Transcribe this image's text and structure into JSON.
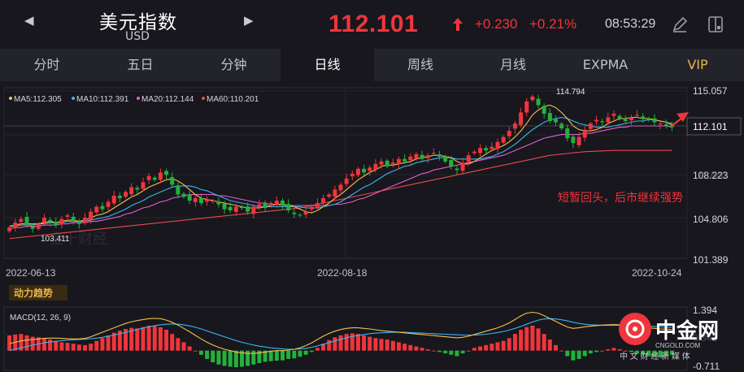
{
  "header": {
    "title": "美元指数",
    "subtitle": "USD",
    "price": "112.101",
    "change": "+0.230",
    "change_pct": "+0.21%",
    "time": "08:53:29",
    "prev_icon": "chevron-left-icon",
    "next_icon": "chevron-right-icon",
    "price_arrow_icon": "arrow-up-icon",
    "draw_icon": "pen-icon",
    "layout_icon": "split-panel-icon"
  },
  "tabs": [
    {
      "label": "分时",
      "active": false
    },
    {
      "label": "五日",
      "active": false
    },
    {
      "label": "分钟",
      "active": false
    },
    {
      "label": "日线",
      "active": true
    },
    {
      "label": "周线",
      "active": false
    },
    {
      "label": "月线",
      "active": false
    },
    {
      "label": "EXPMA",
      "active": false
    },
    {
      "label": "VIP",
      "active": false
    }
  ],
  "ma_legend": [
    {
      "label": "MA5:112.305",
      "color": "#f5c04a"
    },
    {
      "label": "MA10:112.391",
      "color": "#3ab4f2"
    },
    {
      "label": "MA20:112.144",
      "color": "#e95cd2"
    },
    {
      "label": "MA60:110.201",
      "color": "#e84a4a"
    }
  ],
  "annotation": "短暂回头，后市继续强势",
  "watermark": "金十财经",
  "indicator_label": "动力趋势",
  "macd_label": "MACD(12, 26, 9)",
  "colors": {
    "up": "#f0353c",
    "down": "#25b03c",
    "accent": "#f0353c",
    "vip": "#e8b64c"
  },
  "logo": {
    "name": "中金网",
    "url": "CNGOLD.COM",
    "tagline": "中 文 财 经 新 媒 体"
  },
  "chart_data": [
    {
      "type": "candlestick",
      "y_ticks": [
        "115.057",
        "112.101",
        "108.223",
        "104.806",
        "101.389"
      ],
      "current_price_tag": "112.101",
      "hidden_tick": "111.640",
      "ylim": [
        101.389,
        115.057
      ],
      "x_ticks": [
        "2022-06-13",
        "2022-08-18",
        "2022-10-24"
      ],
      "max_label": "114.794",
      "min_label": "103.411",
      "close": [
        103.9,
        104.3,
        104.6,
        104.1,
        103.8,
        104.2,
        104.7,
        104.4,
        104.1,
        104.6,
        104.9,
        104.4,
        104.2,
        104.7,
        105.2,
        105.6,
        105.4,
        106.0,
        106.5,
        106.3,
        106.8,
        107.2,
        107.0,
        107.6,
        108.1,
        107.8,
        108.4,
        108.2,
        107.4,
        106.6,
        106.4,
        106.1,
        106.3,
        105.9,
        106.2,
        106.1,
        105.8,
        105.4,
        105.3,
        105.6,
        105.5,
        105.2,
        105.6,
        105.8,
        105.5,
        105.9,
        106.1,
        105.7,
        105.3,
        105.0,
        104.9,
        105.2,
        105.6,
        105.9,
        106.3,
        106.6,
        107.0,
        107.4,
        107.9,
        108.3,
        108.7,
        108.4,
        108.8,
        109.1,
        109.3,
        108.9,
        109.2,
        109.5,
        109.3,
        109.7,
        109.9,
        109.5,
        109.8,
        110.0,
        109.7,
        109.3,
        108.9,
        108.6,
        109.2,
        109.8,
        110.1,
        110.4,
        110.2,
        110.5,
        110.9,
        111.3,
        111.8,
        112.4,
        113.3,
        114.2,
        114.6,
        113.9,
        113.2,
        112.6,
        112.5,
        112.0,
        111.2,
        110.8,
        111.3,
        111.9,
        112.4,
        112.7,
        112.5,
        112.9,
        113.2,
        112.8,
        112.6,
        112.9,
        113.1,
        112.8,
        112.7,
        112.5,
        112.4,
        112.2,
        112.1
      ],
      "ma5": [
        104.0,
        104.1,
        104.2,
        104.2,
        104.2,
        104.2,
        104.3,
        104.4,
        104.3,
        104.4,
        104.5,
        104.5,
        104.4,
        104.5,
        104.7,
        104.9,
        105.0,
        105.2,
        105.5,
        105.8,
        106.1,
        106.4,
        106.6,
        106.9,
        107.2,
        107.4,
        107.6,
        107.8,
        107.9,
        107.7,
        107.4,
        107.0,
        106.6,
        106.3,
        106.2,
        106.1,
        106.0,
        105.9,
        105.8,
        105.7,
        105.6,
        105.5,
        105.5,
        105.5,
        105.6,
        105.7,
        105.8,
        105.8,
        105.7,
        105.6,
        105.4,
        105.2,
        105.1,
        105.3,
        105.6,
        105.9,
        106.3,
        106.6,
        107.0,
        107.4,
        107.8,
        108.1,
        108.4,
        108.6,
        108.9,
        109.0,
        109.0,
        109.1,
        109.2,
        109.3,
        109.5,
        109.6,
        109.7,
        109.8,
        109.8,
        109.7,
        109.6,
        109.3,
        109.1,
        109.1,
        109.3,
        109.6,
        109.9,
        110.2,
        110.4,
        110.6,
        110.9,
        111.3,
        111.8,
        112.4,
        113.1,
        113.5,
        113.8,
        113.9,
        113.7,
        113.3,
        112.8,
        112.2,
        111.9,
        111.8,
        111.8,
        111.9,
        112.1,
        112.4,
        112.6,
        112.8,
        112.8,
        112.9,
        112.9,
        112.8,
        112.8,
        112.7,
        112.6,
        112.5,
        112.3
      ],
      "ma10": [
        104.0,
        104.0,
        104.1,
        104.1,
        104.1,
        104.2,
        104.2,
        104.3,
        104.3,
        104.3,
        104.4,
        104.4,
        104.4,
        104.4,
        104.5,
        104.6,
        104.7,
        104.8,
        105.0,
        105.2,
        105.4,
        105.7,
        105.9,
        106.1,
        106.4,
        106.6,
        106.8,
        107.0,
        107.2,
        107.3,
        107.3,
        107.3,
        107.2,
        107.0,
        106.9,
        106.7,
        106.5,
        106.3,
        106.1,
        106.0,
        105.9,
        105.8,
        105.7,
        105.6,
        105.6,
        105.6,
        105.6,
        105.6,
        105.6,
        105.6,
        105.6,
        105.5,
        105.5,
        105.5,
        105.6,
        105.7,
        105.8,
        106.0,
        106.3,
        106.6,
        106.9,
        107.2,
        107.4,
        107.7,
        108.0,
        108.3,
        108.5,
        108.7,
        108.9,
        109.0,
        109.2,
        109.3,
        109.4,
        109.5,
        109.6,
        109.6,
        109.6,
        109.5,
        109.5,
        109.5,
        109.5,
        109.5,
        109.6,
        109.7,
        109.9,
        110.1,
        110.4,
        110.7,
        111.1,
        111.5,
        111.9,
        112.2,
        112.5,
        112.7,
        112.8,
        112.9,
        112.8,
        112.6,
        112.4,
        112.3,
        112.2,
        112.1,
        112.1,
        112.1,
        112.2,
        112.3,
        112.4,
        112.5,
        112.6,
        112.6,
        112.7,
        112.7,
        112.6,
        112.5,
        112.4
      ],
      "ma20": [
        103.8,
        103.9,
        103.9,
        104.0,
        104.0,
        104.0,
        104.1,
        104.1,
        104.1,
        104.2,
        104.2,
        104.3,
        104.3,
        104.3,
        104.4,
        104.4,
        104.5,
        104.6,
        104.7,
        104.8,
        105.0,
        105.1,
        105.3,
        105.5,
        105.6,
        105.8,
        106.0,
        106.1,
        106.3,
        106.4,
        106.5,
        106.6,
        106.6,
        106.6,
        106.6,
        106.6,
        106.5,
        106.5,
        106.4,
        106.3,
        106.2,
        106.1,
        106.0,
        105.9,
        105.9,
        105.8,
        105.8,
        105.7,
        105.7,
        105.7,
        105.7,
        105.7,
        105.7,
        105.7,
        105.7,
        105.7,
        105.8,
        105.8,
        105.9,
        106.0,
        106.2,
        106.3,
        106.5,
        106.7,
        106.9,
        107.1,
        107.3,
        107.5,
        107.7,
        107.9,
        108.1,
        108.3,
        108.4,
        108.6,
        108.7,
        108.8,
        108.9,
        109.0,
        109.1,
        109.2,
        109.3,
        109.4,
        109.5,
        109.6,
        109.7,
        109.8,
        110.0,
        110.2,
        110.4,
        110.6,
        110.8,
        111.0,
        111.2,
        111.3,
        111.4,
        111.5,
        111.5,
        111.5,
        111.5,
        111.6,
        111.6,
        111.7,
        111.8,
        111.9,
        112.0,
        112.1,
        112.1,
        112.2,
        112.2,
        112.2,
        112.2,
        112.2,
        112.2,
        112.2,
        112.1
      ],
      "ma60": [
        103.0,
        103.05,
        103.1,
        103.15,
        103.2,
        103.25,
        103.3,
        103.35,
        103.4,
        103.45,
        103.5,
        103.55,
        103.6,
        103.65,
        103.7,
        103.75,
        103.8,
        103.85,
        103.9,
        103.95,
        104.0,
        104.05,
        104.1,
        104.15,
        104.2,
        104.25,
        104.3,
        104.35,
        104.4,
        104.45,
        104.5,
        104.55,
        104.6,
        104.65,
        104.7,
        104.75,
        104.8,
        104.85,
        104.9,
        104.95,
        105.0,
        105.05,
        105.1,
        105.15,
        105.2,
        105.25,
        105.3,
        105.35,
        105.4,
        105.45,
        105.5,
        105.6,
        105.7,
        105.8,
        105.9,
        106.0,
        106.1,
        106.2,
        106.3,
        106.4,
        106.5,
        106.6,
        106.7,
        106.8,
        106.9,
        107.0,
        107.1,
        107.2,
        107.3,
        107.4,
        107.5,
        107.6,
        107.7,
        107.8,
        107.9,
        108.0,
        108.1,
        108.2,
        108.3,
        108.4,
        108.5,
        108.6,
        108.7,
        108.8,
        108.9,
        109.0,
        109.1,
        109.2,
        109.3,
        109.4,
        109.5,
        109.6,
        109.7,
        109.8,
        109.85,
        109.9,
        109.95,
        110.0,
        110.05,
        110.1,
        110.12,
        110.14,
        110.16,
        110.18,
        110.2,
        110.2,
        110.2,
        110.2,
        110.2,
        110.2,
        110.2,
        110.2,
        110.2,
        110.2,
        110.201
      ]
    },
    {
      "type": "macd",
      "y_ticks": [
        "1.394",
        "-0.711"
      ],
      "hidden_tick": "0.342",
      "ylim": [
        -0.711,
        1.394
      ],
      "hist": [
        0.55,
        0.58,
        0.6,
        0.55,
        0.5,
        0.48,
        0.45,
        0.4,
        0.35,
        0.3,
        0.28,
        0.25,
        0.22,
        0.2,
        0.25,
        0.35,
        0.45,
        0.55,
        0.65,
        0.72,
        0.78,
        0.82,
        0.8,
        0.85,
        0.9,
        0.88,
        0.84,
        0.75,
        0.6,
        0.45,
        0.3,
        0.15,
        0.0,
        -0.15,
        -0.3,
        -0.42,
        -0.5,
        -0.55,
        -0.58,
        -0.6,
        -0.58,
        -0.55,
        -0.5,
        -0.45,
        -0.4,
        -0.38,
        -0.36,
        -0.35,
        -0.3,
        -0.28,
        -0.22,
        -0.15,
        -0.05,
        0.1,
        0.25,
        0.38,
        0.48,
        0.55,
        0.6,
        0.62,
        0.6,
        0.55,
        0.5,
        0.45,
        0.42,
        0.4,
        0.35,
        0.3,
        0.25,
        0.2,
        0.15,
        0.1,
        0.05,
        0.0,
        -0.05,
        -0.1,
        -0.15,
        -0.2,
        -0.1,
        0.0,
        0.1,
        0.15,
        0.2,
        0.25,
        0.3,
        0.35,
        0.45,
        0.6,
        0.75,
        0.85,
        0.9,
        0.8,
        0.6,
        0.4,
        0.2,
        0.0,
        -0.2,
        -0.35,
        -0.3,
        -0.2,
        -0.1,
        -0.05,
        0.0,
        0.05,
        0.1,
        0.05,
        0.0,
        -0.05,
        -0.1,
        -0.15,
        -0.2,
        -0.22,
        -0.25,
        -0.2,
        -0.15
      ],
      "dif": [
        0.25,
        0.3,
        0.35,
        0.38,
        0.4,
        0.42,
        0.44,
        0.45,
        0.45,
        0.44,
        0.43,
        0.42,
        0.42,
        0.44,
        0.5,
        0.58,
        0.66,
        0.74,
        0.82,
        0.9,
        0.98,
        1.04,
        1.08,
        1.12,
        1.15,
        1.16,
        1.15,
        1.1,
        1.02,
        0.92,
        0.8,
        0.68,
        0.55,
        0.42,
        0.3,
        0.2,
        0.12,
        0.05,
        0.0,
        -0.05,
        -0.08,
        -0.1,
        -0.1,
        -0.08,
        -0.05,
        -0.02,
        0.0,
        0.0,
        0.02,
        0.05,
        0.1,
        0.18,
        0.28,
        0.4,
        0.52,
        0.62,
        0.7,
        0.76,
        0.8,
        0.82,
        0.82,
        0.8,
        0.78,
        0.75,
        0.72,
        0.7,
        0.68,
        0.66,
        0.64,
        0.62,
        0.6,
        0.58,
        0.56,
        0.54,
        0.52,
        0.5,
        0.48,
        0.46,
        0.48,
        0.52,
        0.58,
        0.64,
        0.7,
        0.76,
        0.82,
        0.9,
        1.0,
        1.12,
        1.25,
        1.35,
        1.38,
        1.35,
        1.26,
        1.15,
        1.05,
        0.95,
        0.85,
        0.8,
        0.82,
        0.86,
        0.88,
        0.9,
        0.92,
        0.93,
        0.94,
        0.93,
        0.92,
        0.9,
        0.88,
        0.85,
        0.82,
        0.8,
        0.78,
        0.77,
        0.76
      ],
      "dea": [
        0.0,
        0.05,
        0.1,
        0.15,
        0.2,
        0.24,
        0.28,
        0.31,
        0.34,
        0.36,
        0.38,
        0.39,
        0.4,
        0.41,
        0.43,
        0.45,
        0.48,
        0.52,
        0.56,
        0.61,
        0.66,
        0.71,
        0.76,
        0.81,
        0.86,
        0.9,
        0.93,
        0.95,
        0.96,
        0.95,
        0.93,
        0.89,
        0.84,
        0.78,
        0.71,
        0.64,
        0.57,
        0.5,
        0.43,
        0.36,
        0.3,
        0.25,
        0.2,
        0.16,
        0.13,
        0.1,
        0.08,
        0.06,
        0.05,
        0.05,
        0.06,
        0.08,
        0.12,
        0.17,
        0.23,
        0.29,
        0.35,
        0.41,
        0.46,
        0.51,
        0.55,
        0.58,
        0.61,
        0.63,
        0.64,
        0.65,
        0.66,
        0.66,
        0.66,
        0.65,
        0.64,
        0.63,
        0.62,
        0.61,
        0.6,
        0.59,
        0.58,
        0.57,
        0.56,
        0.56,
        0.56,
        0.57,
        0.59,
        0.62,
        0.65,
        0.69,
        0.74,
        0.8,
        0.87,
        0.95,
        1.03,
        1.1,
        1.14,
        1.15,
        1.14,
        1.11,
        1.07,
        1.02,
        0.98,
        0.95,
        0.93,
        0.92,
        0.91,
        0.91,
        0.91,
        0.91,
        0.91,
        0.91,
        0.9,
        0.89,
        0.88,
        0.87,
        0.86,
        0.85,
        0.84
      ]
    }
  ]
}
